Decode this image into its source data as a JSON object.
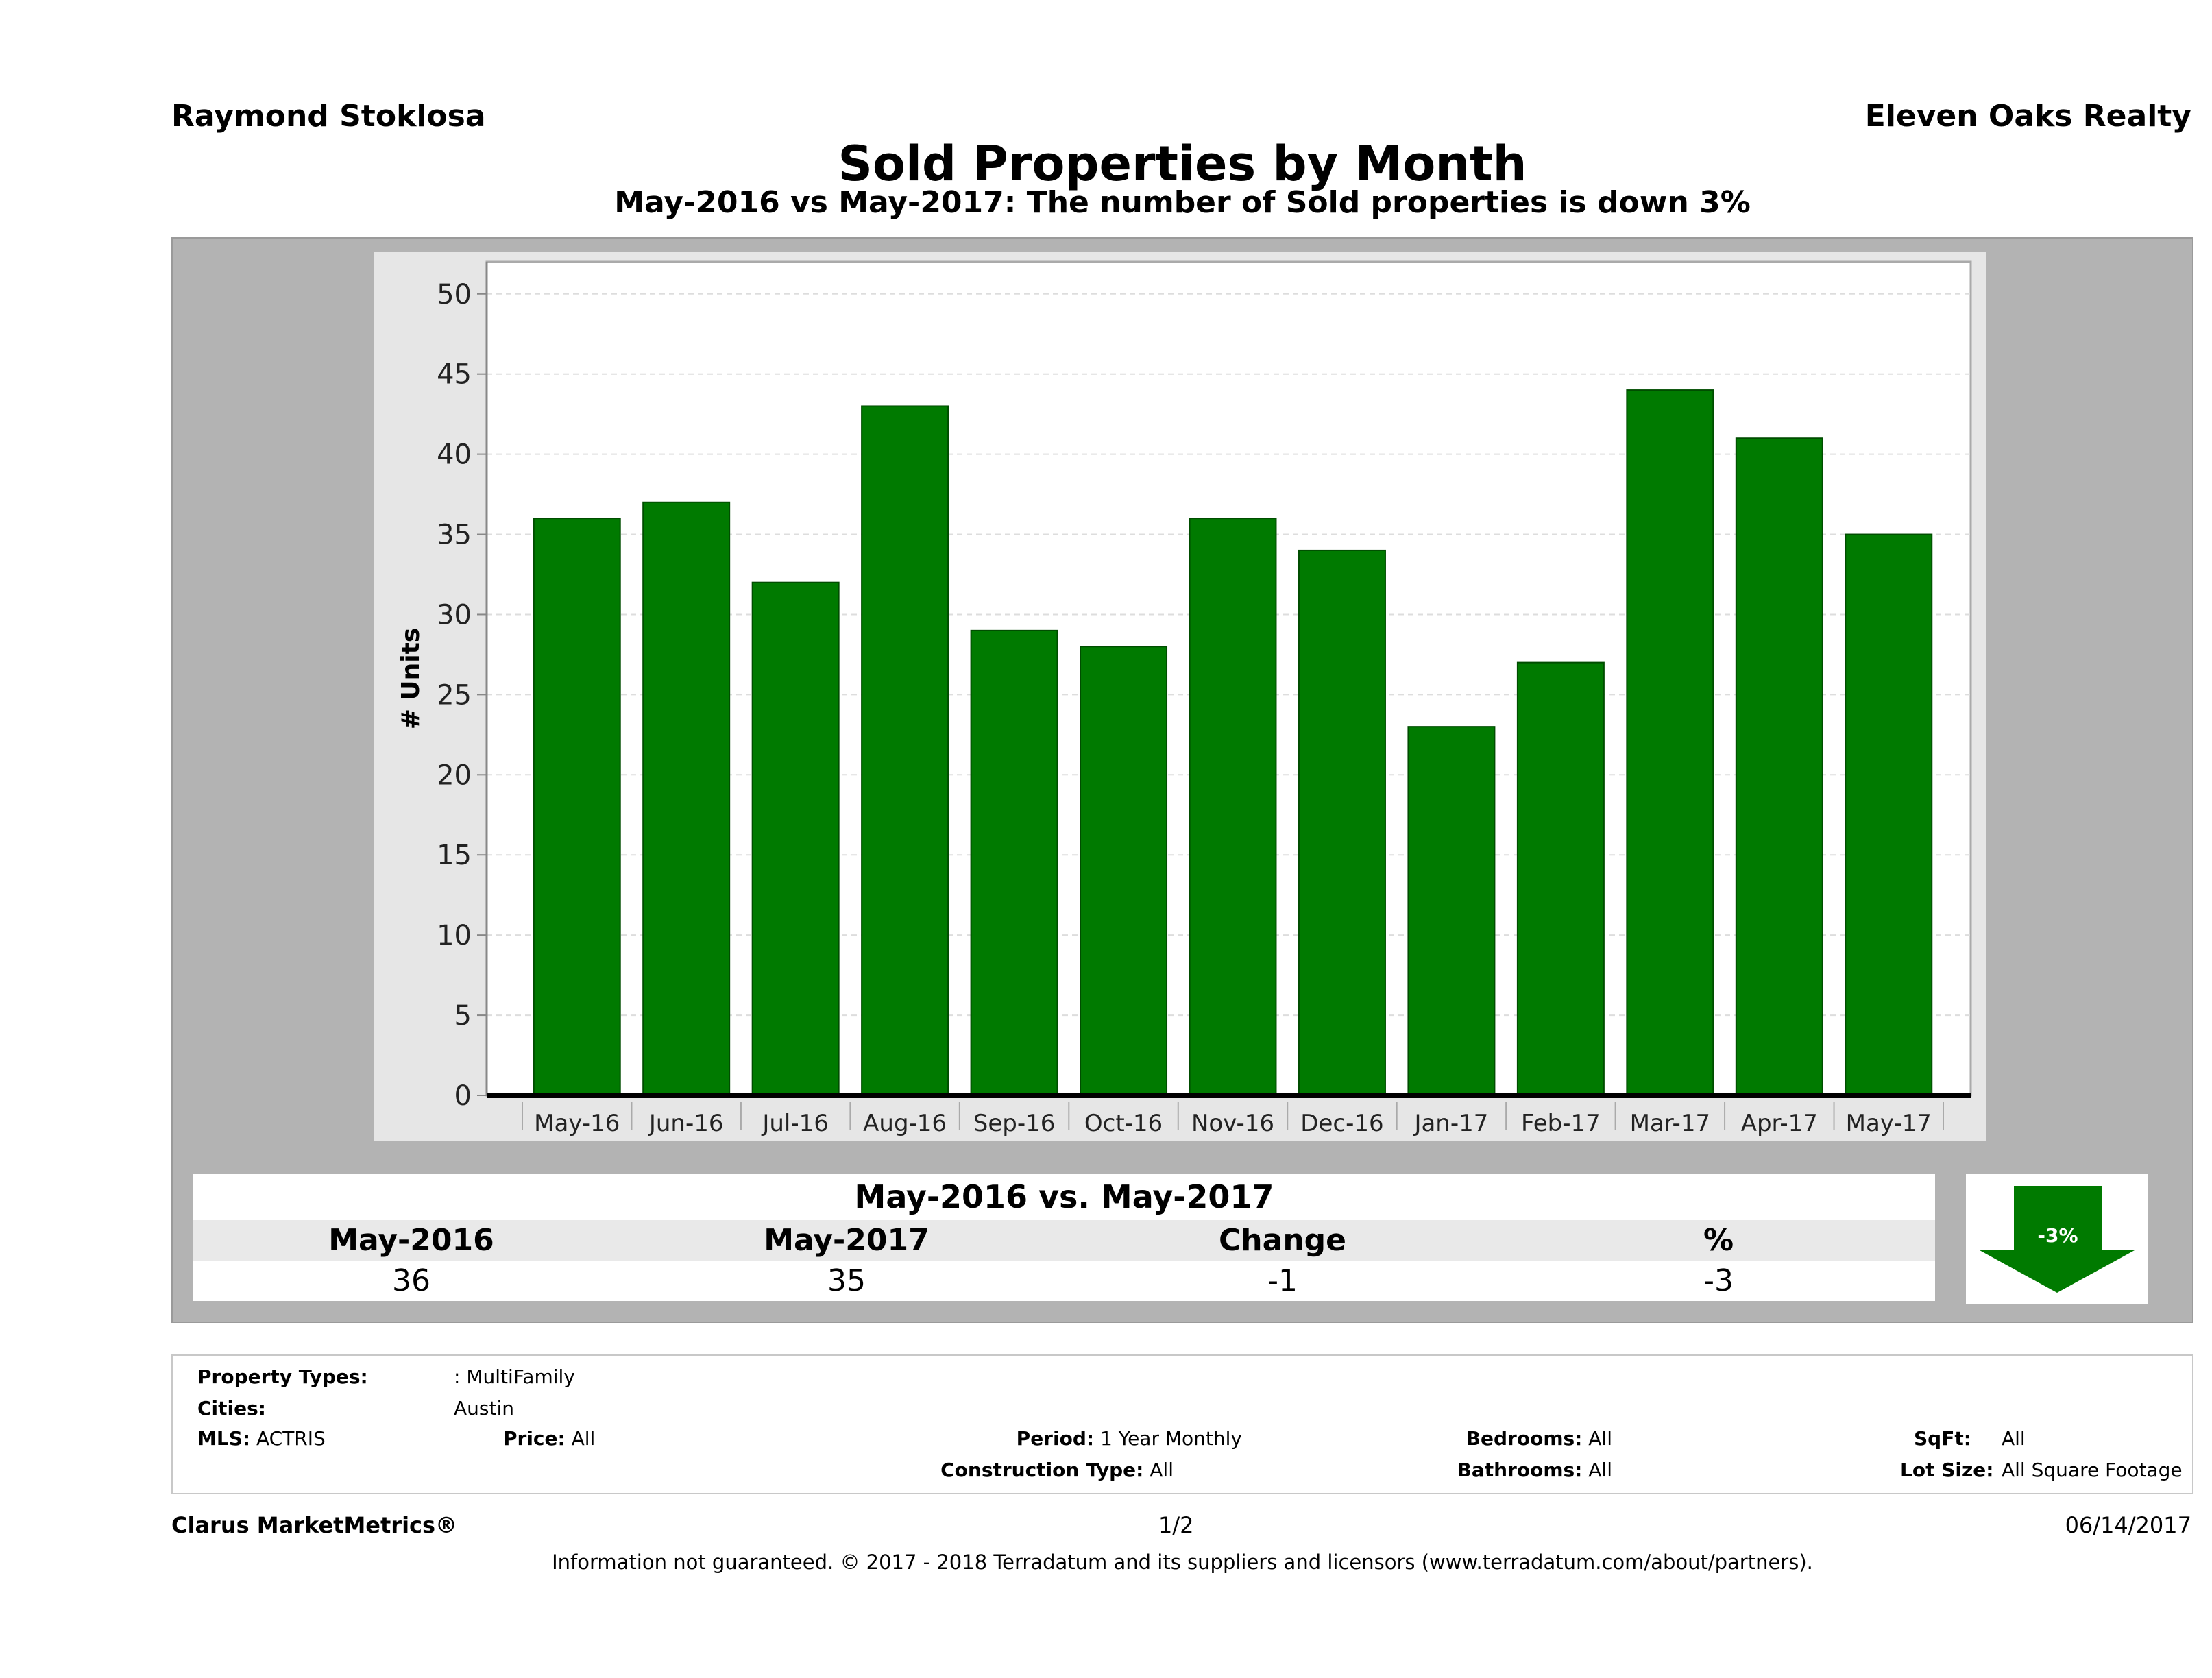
{
  "header": {
    "agent": "Raymond Stoklosa",
    "brokerage": "Eleven Oaks Realty",
    "title": "Sold Properties by Month",
    "subtitle": "May-2016 vs May-2017: The number of Sold  properties is down 3%"
  },
  "chart_data": {
    "type": "bar",
    "categories": [
      "May-16",
      "Jun-16",
      "Jul-16",
      "Aug-16",
      "Sep-16",
      "Oct-16",
      "Nov-16",
      "Dec-16",
      "Jan-17",
      "Feb-17",
      "Mar-17",
      "Apr-17",
      "May-17"
    ],
    "values": [
      36,
      37,
      32,
      43,
      29,
      28,
      36,
      34,
      23,
      27,
      44,
      41,
      35
    ],
    "ylabel": "# Units",
    "xlabel": "",
    "ylim": [
      0,
      52
    ],
    "yticks": [
      "0",
      "5",
      "10",
      "15",
      "20",
      "25",
      "30",
      "35",
      "40",
      "45",
      "50"
    ],
    "grid": true,
    "bar_color": "#007a00"
  },
  "comparison": {
    "header": "May-2016 vs. May-2017",
    "columns": [
      "May-2016",
      "May-2017",
      "Change",
      "%"
    ],
    "values": [
      "36",
      "35",
      "-1",
      "-3"
    ],
    "badge": "-3%",
    "badge_color": "#007a00"
  },
  "info": {
    "property_types_label": "Property Types:",
    "property_types_value": ": MultiFamily",
    "cities_label": "Cities:",
    "cities_value": "Austin",
    "mls_label": "MLS:",
    "mls_value": "ACTRIS",
    "price_label": "Price:",
    "price_value": "All",
    "period_label": "Period:",
    "period_value": "1 Year Monthly",
    "construction_label": "Construction Type:",
    "construction_value": "All",
    "bedrooms_label": "Bedrooms:",
    "bedrooms_value": "All",
    "bathrooms_label": "Bathrooms:",
    "bathrooms_value": "All",
    "sqft_label": "SqFt:",
    "sqft_value": "All",
    "lot_label": "Lot Size:",
    "lot_value": "All Square Footage"
  },
  "footer": {
    "brand": "Clarus MarketMetrics®",
    "page": "1/2",
    "date": "06/14/2017",
    "disclaimer": "Information not guaranteed. © 2017 - 2018 Terradatum and its suppliers and licensors (www.terradatum.com/about/partners)."
  }
}
